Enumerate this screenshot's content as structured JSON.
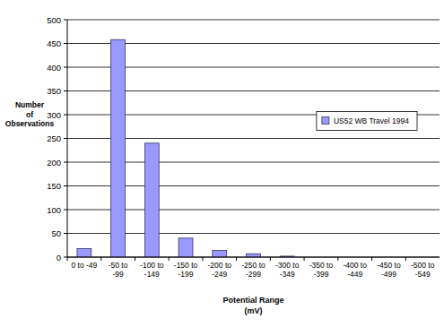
{
  "chart_data": {
    "type": "bar",
    "x_label": "Potential Range (mV)",
    "y_label": "Number of Observations",
    "categories": [
      "0 to -49",
      "-50 to -99",
      "-100 to -149",
      "-150 to -199",
      "-200 to -249",
      "-250 to -299",
      "-300 to -349",
      "-350 to -399",
      "-400 to -449",
      "-450 to -499",
      "-500 to -549"
    ],
    "series": [
      {
        "name": "US52 WB Travel 1994",
        "color": "#9999ff",
        "values": [
          18,
          458,
          240,
          40,
          14,
          7,
          2,
          0,
          0,
          0,
          0
        ]
      }
    ],
    "ylim": [
      0,
      500
    ],
    "yticks": [
      0,
      50,
      100,
      150,
      200,
      250,
      300,
      350,
      400,
      450,
      500
    ],
    "grid": true,
    "legend": "right"
  }
}
